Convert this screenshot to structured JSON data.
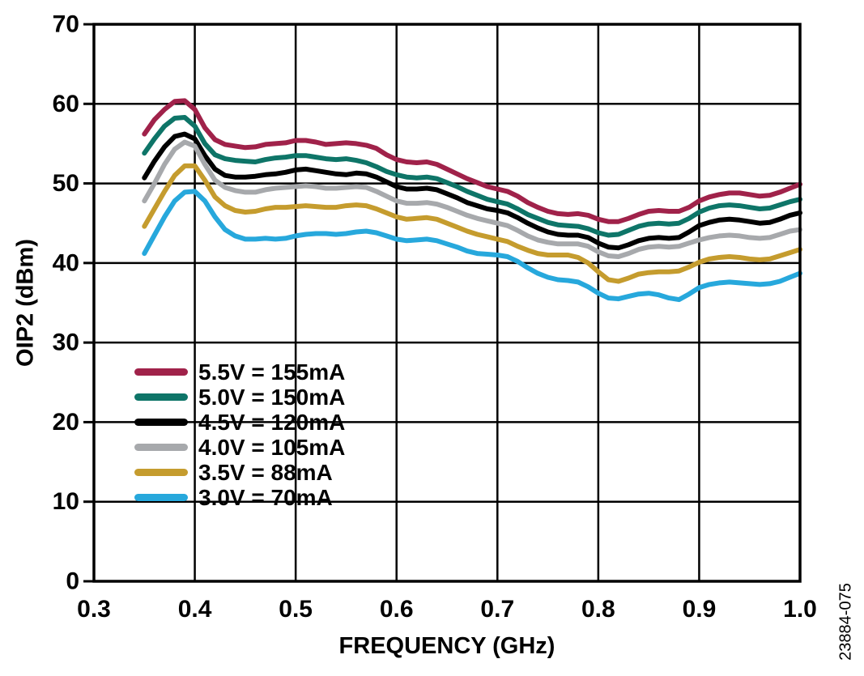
{
  "watermark": "23884-075",
  "chart_data": {
    "type": "line",
    "title": "",
    "xlabel": "FREQUENCY (GHz)",
    "ylabel": "OIP2 (dBm)",
    "xlim": [
      0.3,
      1.0
    ],
    "ylim": [
      0,
      70
    ],
    "x_ticks": [
      0.3,
      0.4,
      0.5,
      0.6,
      0.7,
      0.8,
      0.9,
      1.0
    ],
    "x_tick_labels": [
      "0.3",
      "0.4",
      "0.5",
      "0.6",
      "0.7",
      "0.8",
      "0.9",
      "1.0"
    ],
    "y_ticks": [
      0,
      10,
      20,
      30,
      40,
      50,
      60,
      70
    ],
    "y_tick_labels": [
      "0",
      "10",
      "20",
      "30",
      "40",
      "50",
      "60",
      "70"
    ],
    "grid": true,
    "legend_position": "inside-lower-left",
    "x_start": 0.35,
    "x_step": 0.01,
    "axis_color": "#000000",
    "series": [
      {
        "label": "5.5V = 155mA",
        "color": "#A0224A",
        "values": [
          56.2,
          58.0,
          59.3,
          60.3,
          60.4,
          59.3,
          57.0,
          55.5,
          54.9,
          54.7,
          54.5,
          54.6,
          54.9,
          55.0,
          55.1,
          55.4,
          55.4,
          55.2,
          54.9,
          55.0,
          55.1,
          55.0,
          54.8,
          54.4,
          53.6,
          53.0,
          52.7,
          52.6,
          52.7,
          52.4,
          51.8,
          51.2,
          50.6,
          50.1,
          49.6,
          49.3,
          49.0,
          48.4,
          47.6,
          47.0,
          46.5,
          46.2,
          46.1,
          46.2,
          46.0,
          45.5,
          45.2,
          45.2,
          45.6,
          46.1,
          46.5,
          46.6,
          46.5,
          46.5,
          47.0,
          47.8,
          48.3,
          48.6,
          48.8,
          48.8,
          48.6,
          48.4,
          48.5,
          48.9,
          49.4,
          49.9
        ]
      },
      {
        "label": "5.0V = 150mA",
        "color": "#0E7568",
        "values": [
          53.8,
          55.6,
          57.2,
          58.2,
          58.3,
          57.2,
          55.0,
          53.6,
          53.1,
          52.9,
          52.8,
          52.7,
          53.0,
          53.2,
          53.3,
          53.5,
          53.5,
          53.3,
          53.1,
          53.0,
          53.1,
          52.9,
          52.6,
          52.1,
          51.5,
          51.1,
          50.8,
          50.7,
          50.8,
          50.6,
          50.1,
          49.6,
          49.0,
          48.5,
          48.0,
          47.7,
          47.4,
          46.8,
          46.1,
          45.6,
          45.1,
          44.8,
          44.7,
          44.6,
          44.3,
          43.8,
          43.5,
          43.6,
          44.1,
          44.6,
          44.9,
          45.0,
          44.9,
          45.0,
          45.6,
          46.4,
          46.9,
          47.2,
          47.3,
          47.2,
          47.0,
          46.8,
          46.9,
          47.3,
          47.7,
          48.0
        ]
      },
      {
        "label": "4.5V = 120mA",
        "color": "#000000",
        "values": [
          50.7,
          52.8,
          54.6,
          55.9,
          56.2,
          55.6,
          53.5,
          51.8,
          51.0,
          50.8,
          50.8,
          50.9,
          51.1,
          51.2,
          51.4,
          51.7,
          51.8,
          51.6,
          51.4,
          51.2,
          51.1,
          51.3,
          51.2,
          50.8,
          50.2,
          49.6,
          49.3,
          49.3,
          49.4,
          49.2,
          48.7,
          48.2,
          47.6,
          47.2,
          46.8,
          46.6,
          46.3,
          45.7,
          45.0,
          44.4,
          43.9,
          43.6,
          43.5,
          43.5,
          43.2,
          42.5,
          42.0,
          41.9,
          42.3,
          42.8,
          43.1,
          43.2,
          43.1,
          43.2,
          43.9,
          44.7,
          45.1,
          45.4,
          45.5,
          45.4,
          45.2,
          45.0,
          45.1,
          45.5,
          46.0,
          46.3
        ]
      },
      {
        "label": "4.0V = 105mA",
        "color": "#A7A9AC",
        "values": [
          47.8,
          50.0,
          52.4,
          54.3,
          55.2,
          54.7,
          52.4,
          50.4,
          49.5,
          49.1,
          48.9,
          48.9,
          49.2,
          49.4,
          49.5,
          49.6,
          49.7,
          49.6,
          49.4,
          49.4,
          49.5,
          49.6,
          49.5,
          49.0,
          48.4,
          47.8,
          47.5,
          47.5,
          47.6,
          47.4,
          47.0,
          46.5,
          46.0,
          45.6,
          45.3,
          45.0,
          44.7,
          44.1,
          43.4,
          42.9,
          42.6,
          42.4,
          42.4,
          42.4,
          42.1,
          41.4,
          40.9,
          40.8,
          41.2,
          41.7,
          42.0,
          42.1,
          42.0,
          42.1,
          42.5,
          42.9,
          43.2,
          43.4,
          43.5,
          43.4,
          43.2,
          43.1,
          43.2,
          43.6,
          44.0,
          44.2
        ]
      },
      {
        "label": "3.5V = 88mA",
        "color": "#C59C2E",
        "values": [
          44.6,
          46.8,
          49.0,
          51.0,
          52.2,
          52.2,
          50.4,
          48.3,
          47.2,
          46.6,
          46.4,
          46.5,
          46.8,
          47.0,
          47.0,
          47.1,
          47.2,
          47.1,
          47.0,
          47.0,
          47.2,
          47.3,
          47.2,
          46.8,
          46.3,
          45.8,
          45.5,
          45.6,
          45.7,
          45.5,
          45.0,
          44.5,
          44.0,
          43.6,
          43.3,
          43.0,
          42.7,
          42.1,
          41.6,
          41.2,
          41.0,
          41.0,
          41.0,
          40.7,
          40.0,
          38.9,
          37.9,
          37.7,
          38.1,
          38.6,
          38.8,
          38.9,
          38.9,
          39.0,
          39.5,
          40.1,
          40.5,
          40.7,
          40.8,
          40.7,
          40.5,
          40.4,
          40.5,
          40.9,
          41.3,
          41.7
        ]
      },
      {
        "label": "3.0V = 70mA",
        "color": "#27A8DC",
        "values": [
          41.2,
          43.5,
          45.8,
          47.8,
          48.9,
          49.0,
          47.8,
          45.8,
          44.2,
          43.4,
          43.0,
          43.0,
          43.1,
          43.0,
          43.1,
          43.4,
          43.6,
          43.7,
          43.7,
          43.6,
          43.7,
          43.9,
          44.0,
          43.8,
          43.4,
          43.0,
          42.8,
          42.9,
          43.0,
          42.8,
          42.4,
          42.0,
          41.5,
          41.2,
          41.1,
          41.0,
          40.8,
          40.2,
          39.4,
          38.7,
          38.2,
          37.9,
          37.8,
          37.6,
          37.0,
          36.2,
          35.6,
          35.5,
          35.8,
          36.1,
          36.2,
          36.0,
          35.6,
          35.4,
          36.1,
          36.9,
          37.3,
          37.5,
          37.6,
          37.5,
          37.4,
          37.3,
          37.4,
          37.7,
          38.2,
          38.7
        ]
      }
    ]
  }
}
